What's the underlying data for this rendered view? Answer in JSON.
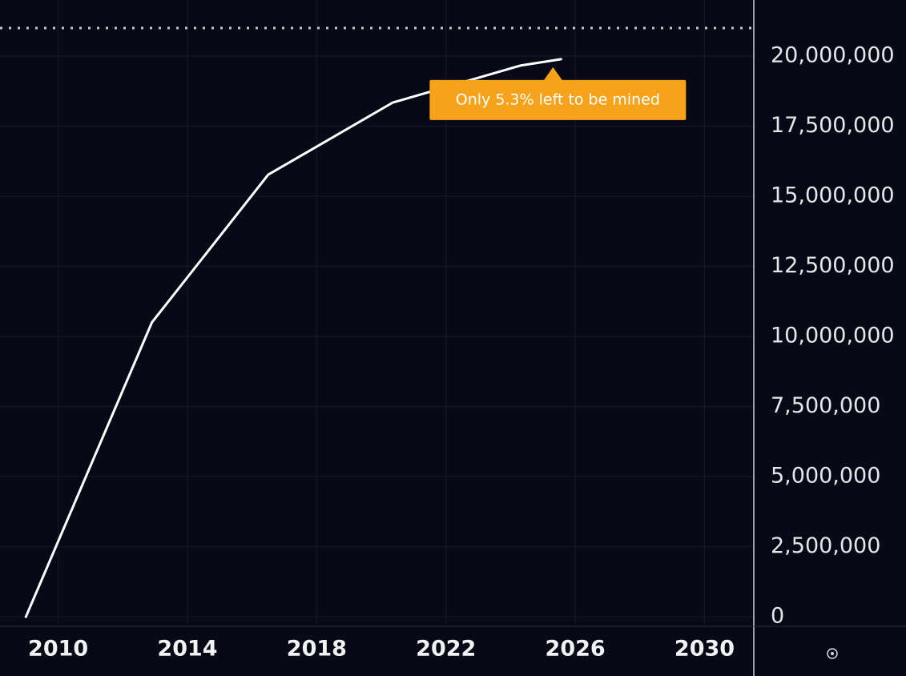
{
  "chart_data": {
    "type": "line",
    "x": [
      2009.0,
      2012.9,
      2016.5,
      2020.35,
      2024.3,
      2025.56
    ],
    "values": [
      0,
      10500000,
      15770000,
      18340000,
      19660000,
      19890000
    ],
    "color": "#ffffff",
    "xlim": [
      2008.2,
      2031.5
    ],
    "xticks": [
      2010,
      2014,
      2018,
      2022,
      2026,
      2030
    ],
    "ylim": [
      -340000,
      22000000
    ],
    "yticks": [
      0,
      {
        "value": 2500000,
        "label": "2,500,000"
      },
      {
        "value": 5000000,
        "label": "5,000,000"
      },
      {
        "value": 7500000,
        "label": "7,500,000"
      },
      {
        "value": 10000000,
        "label": "10,000,000"
      },
      {
        "value": 12500000,
        "label": "12,500,000"
      },
      {
        "value": 15000000,
        "label": "15,000,000"
      },
      {
        "value": 17500000,
        "label": "17,500,000"
      },
      {
        "value": 20000000,
        "label": "20,000,000"
      }
    ],
    "grid": true,
    "reference_line": 21000000,
    "annotation": "Only 5.3% left to be mined"
  }
}
